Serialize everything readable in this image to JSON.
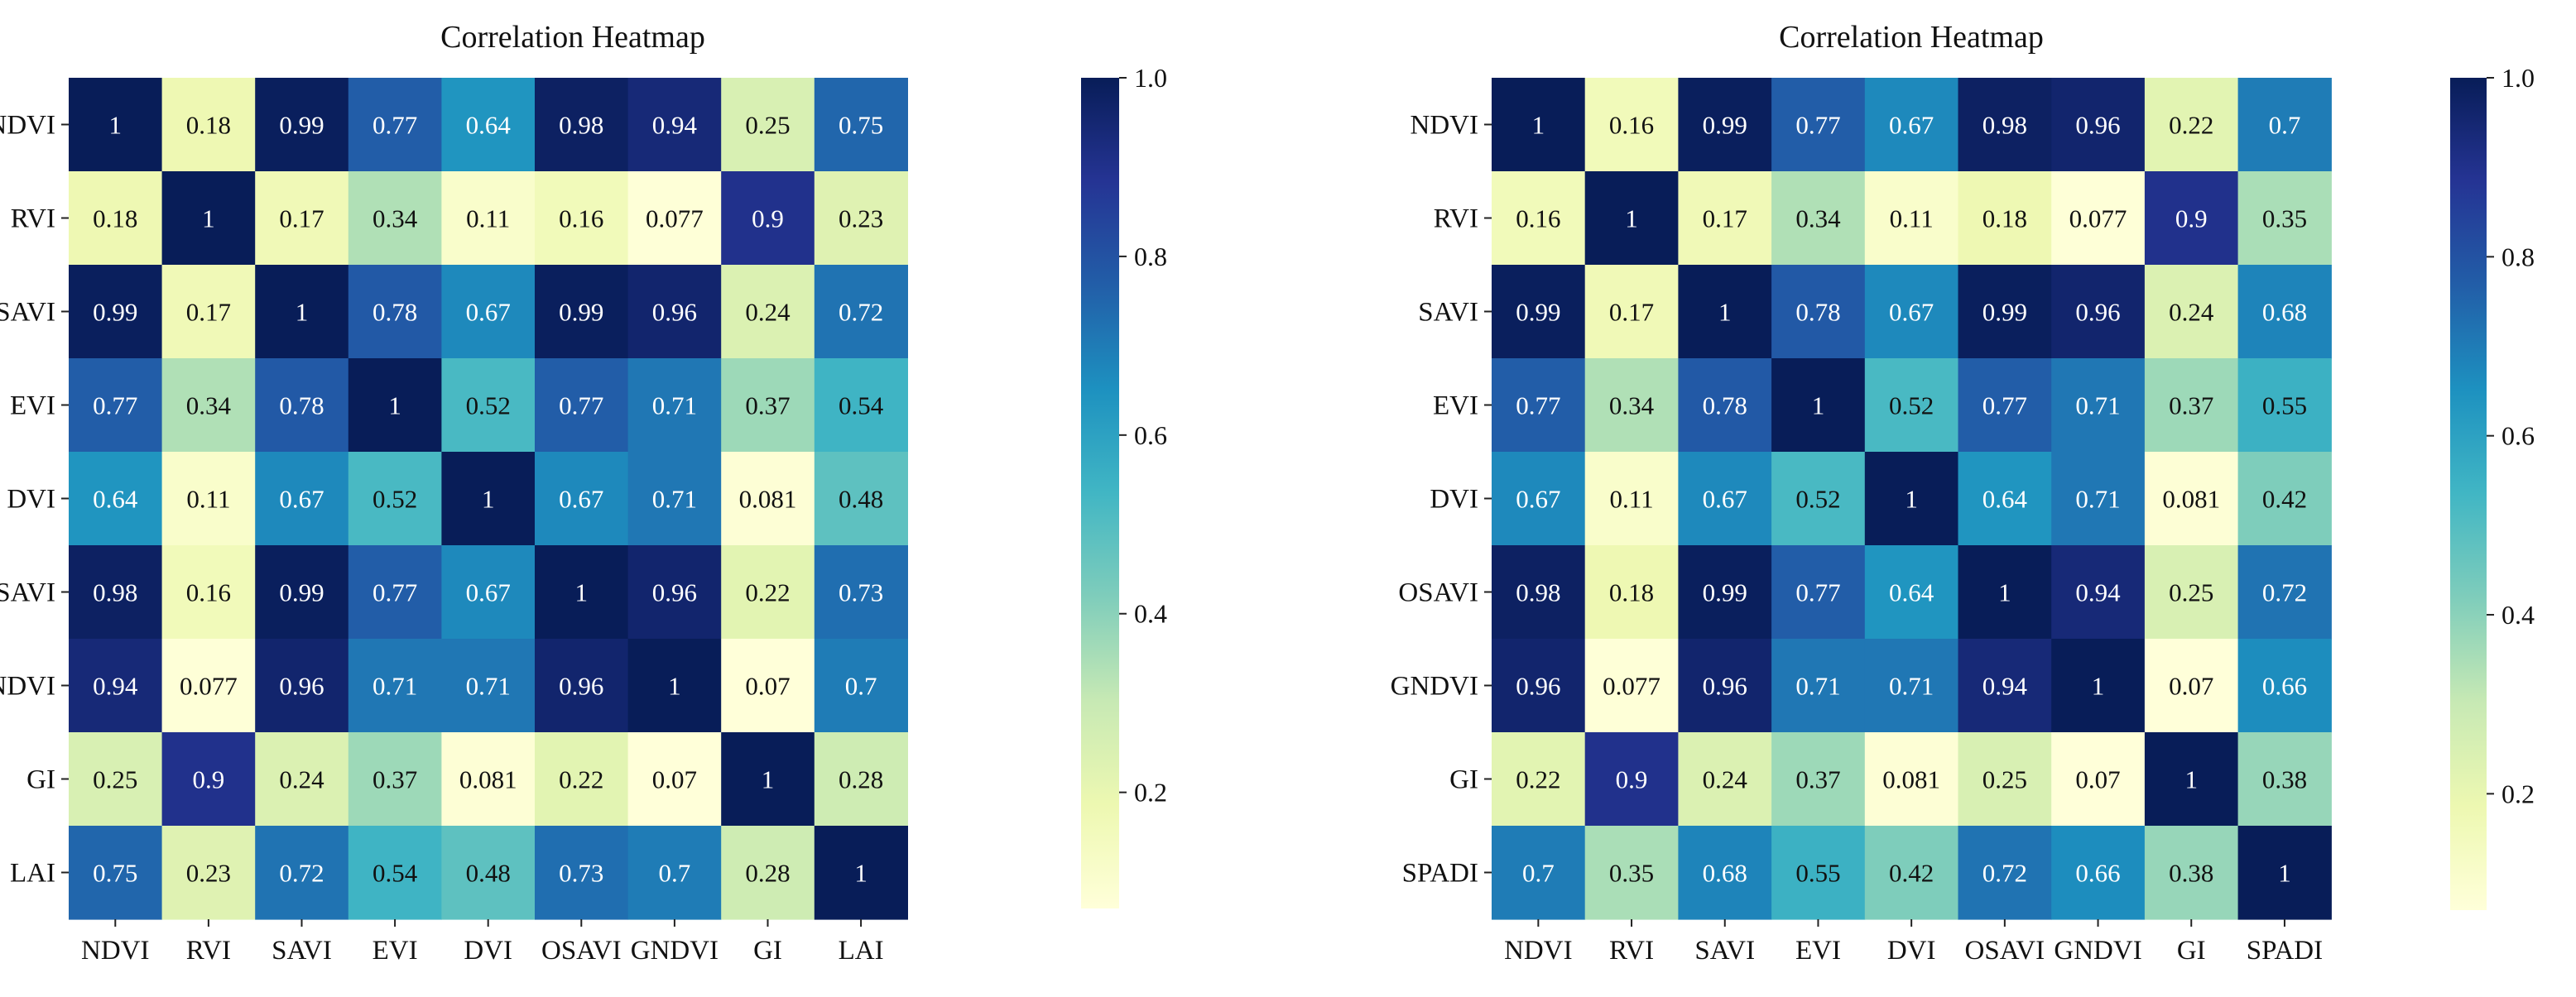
{
  "chart_data": [
    {
      "type": "heatmap",
      "title": "Correlation Heatmap",
      "row_labels": [
        "NDVI",
        "RVI",
        "SAVI",
        "EVI",
        "DVI",
        "OSAVI",
        "GNDVI",
        "GI",
        "LAI"
      ],
      "col_labels": [
        "NDVI",
        "RVI",
        "SAVI",
        "EVI",
        "DVI",
        "OSAVI",
        "GNDVI",
        "GI",
        "LAI"
      ],
      "values": [
        [
          1,
          0.18,
          0.99,
          0.77,
          0.64,
          0.98,
          0.94,
          0.25,
          0.75
        ],
        [
          0.18,
          1,
          0.17,
          0.34,
          0.11,
          0.16,
          0.077,
          0.9,
          0.23
        ],
        [
          0.99,
          0.17,
          1,
          0.78,
          0.67,
          0.99,
          0.96,
          0.24,
          0.72
        ],
        [
          0.77,
          0.34,
          0.78,
          1,
          0.52,
          0.77,
          0.71,
          0.37,
          0.54
        ],
        [
          0.64,
          0.11,
          0.67,
          0.52,
          1,
          0.67,
          0.71,
          0.081,
          0.48
        ],
        [
          0.98,
          0.16,
          0.99,
          0.77,
          0.67,
          1,
          0.96,
          0.22,
          0.73
        ],
        [
          0.94,
          0.077,
          0.96,
          0.71,
          0.71,
          0.96,
          1,
          0.07,
          0.7
        ],
        [
          0.25,
          0.9,
          0.24,
          0.37,
          0.081,
          0.22,
          0.07,
          1,
          0.28
        ],
        [
          0.75,
          0.23,
          0.72,
          0.54,
          0.48,
          0.73,
          0.7,
          0.28,
          1
        ]
      ],
      "colormap": "YlGnBu",
      "colorbar": {
        "vmin": 0.07,
        "vmax": 1.0,
        "ticks": [
          0.2,
          0.4,
          0.6,
          0.8,
          1.0
        ],
        "tick_labels": [
          "0.2",
          "0.4",
          "0.6",
          "0.8",
          "1.0"
        ]
      }
    },
    {
      "type": "heatmap",
      "title": "Correlation Heatmap",
      "row_labels": [
        "NDVI",
        "RVI",
        "SAVI",
        "EVI",
        "DVI",
        "OSAVI",
        "GNDVI",
        "GI",
        "SPADI"
      ],
      "col_labels": [
        "NDVI",
        "RVI",
        "SAVI",
        "EVI",
        "DVI",
        "OSAVI",
        "GNDVI",
        "GI",
        "SPADI"
      ],
      "values": [
        [
          1,
          0.16,
          0.99,
          0.77,
          0.67,
          0.98,
          0.96,
          0.22,
          0.7
        ],
        [
          0.16,
          1,
          0.17,
          0.34,
          0.11,
          0.18,
          0.077,
          0.9,
          0.35
        ],
        [
          0.99,
          0.17,
          1,
          0.78,
          0.67,
          0.99,
          0.96,
          0.24,
          0.68
        ],
        [
          0.77,
          0.34,
          0.78,
          1,
          0.52,
          0.77,
          0.71,
          0.37,
          0.55
        ],
        [
          0.67,
          0.11,
          0.67,
          0.52,
          1,
          0.64,
          0.71,
          0.081,
          0.42
        ],
        [
          0.98,
          0.18,
          0.99,
          0.77,
          0.64,
          1,
          0.94,
          0.25,
          0.72
        ],
        [
          0.96,
          0.077,
          0.96,
          0.71,
          0.71,
          0.94,
          1,
          0.07,
          0.66
        ],
        [
          0.22,
          0.9,
          0.24,
          0.37,
          0.081,
          0.25,
          0.07,
          1,
          0.38
        ],
        [
          0.7,
          0.35,
          0.68,
          0.55,
          0.42,
          0.72,
          0.66,
          0.38,
          1
        ]
      ],
      "colormap": "YlGnBu",
      "colorbar": {
        "vmin": 0.07,
        "vmax": 1.0,
        "ticks": [
          0.2,
          0.4,
          0.6,
          0.8,
          1.0
        ],
        "tick_labels": [
          "0.2",
          "0.4",
          "0.6",
          "0.8",
          "1.0"
        ]
      }
    }
  ]
}
